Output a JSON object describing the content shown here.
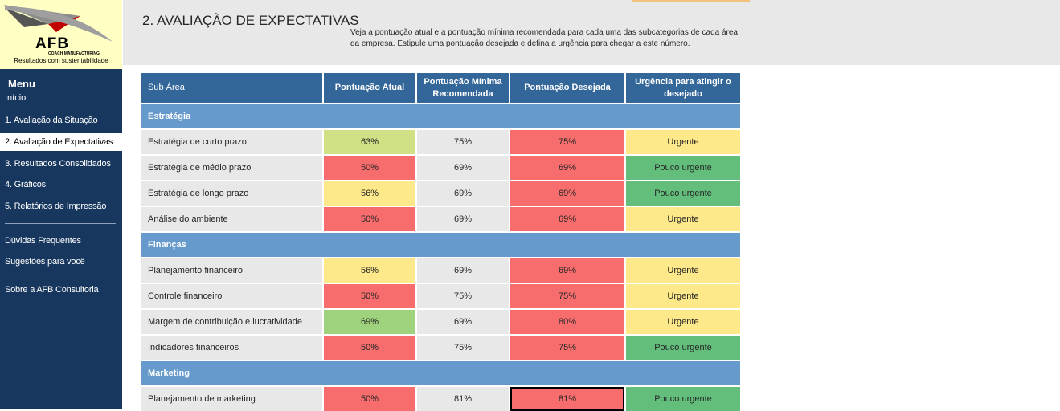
{
  "logo": {
    "brand": "AFB",
    "sub": "COACH MANUFACTURING",
    "tagline": "Resultados com sustentabilidade"
  },
  "menu": {
    "title": "Menu",
    "start": "Início",
    "items": [
      {
        "label": "1. Avaliação da Situação"
      },
      {
        "label": "2. Avaliação de Expectativas"
      },
      {
        "label": "3. Resultados Consolidados"
      },
      {
        "label": "4. Gráficos"
      },
      {
        "label": "5. Relatórios de Impressão"
      },
      {
        "label": "Dúvidas Frequentes"
      },
      {
        "label": "Sugestões para você"
      },
      {
        "label": "Sobre a AFB Consultoria"
      }
    ]
  },
  "header": {
    "title": "2. AVALIAÇÃO DE EXPECTATIVAS",
    "desc_line1": "Veja a pontuação atual e a pontuação mínima recomendada para cada uma das subcategorias de cada área",
    "desc_line2": "da empresa. Estipule uma pontuação desejada e defina a urgência para chegar a este número."
  },
  "table": {
    "headers": {
      "sub": "Sub Área",
      "atual": "Pontuação Atual",
      "minima": "Pontuação Mínima Recomendada",
      "desejada": "Pontuação Desejada",
      "urgencia": "Urgência para atingir o desejado"
    },
    "sections": [
      {
        "name": "Estratégia",
        "rows": [
          {
            "sub": "Estratégia de curto prazo",
            "atual": "63%",
            "minima": "75%",
            "desejada": "75%",
            "urgencia": "Urgente"
          },
          {
            "sub": "Estratégia de médio prazo",
            "atual": "50%",
            "minima": "69%",
            "desejada": "69%",
            "urgencia": "Pouco urgente"
          },
          {
            "sub": "Estratégia de longo prazo",
            "atual": "56%",
            "minima": "69%",
            "desejada": "69%",
            "urgencia": "Pouco urgente"
          },
          {
            "sub": "Análise do ambiente",
            "atual": "50%",
            "minima": "69%",
            "desejada": "69%",
            "urgencia": "Urgente"
          }
        ]
      },
      {
        "name": "Finanças",
        "rows": [
          {
            "sub": "Planejamento financeiro",
            "atual": "56%",
            "minima": "69%",
            "desejada": "69%",
            "urgencia": "Urgente"
          },
          {
            "sub": "Controle financeiro",
            "atual": "50%",
            "minima": "75%",
            "desejada": "75%",
            "urgencia": "Urgente"
          },
          {
            "sub": "Margem de contribuição e lucratividade",
            "atual": "69%",
            "minima": "69%",
            "desejada": "80%",
            "urgencia": "Urgente"
          },
          {
            "sub": "Indicadores financeiros",
            "atual": "50%",
            "minima": "75%",
            "desejada": "75%",
            "urgencia": "Pouco urgente"
          }
        ]
      },
      {
        "name": "Marketing",
        "rows": [
          {
            "sub": "Planejamento de marketing",
            "atual": "50%",
            "minima": "81%",
            "desejada": "81%",
            "urgencia": "Pouco urgente"
          }
        ]
      }
    ]
  },
  "colors": {
    "sidebar": "#17375e",
    "header_cell": "#336699",
    "section_band": "#6699cc",
    "score_red": "#f76d6d",
    "score_yellow": "#fde98a",
    "score_lightgreen": "#cfe085",
    "score_green": "#9ed27c",
    "urg_yellow": "#fde98a",
    "urg_green": "#63be7b"
  }
}
